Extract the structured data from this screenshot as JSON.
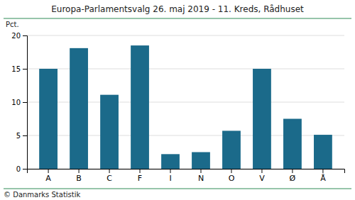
{
  "chart_data": {
    "type": "bar",
    "title": "Europa-Parlamentsvalg 26. maj 2019 - 11. Kreds, Rådhuset",
    "ylabel": "Pct.",
    "footer": "© Danmarks Statistik",
    "categories": [
      "A",
      "B",
      "C",
      "F",
      "I",
      "N",
      "O",
      "V",
      "Ø",
      "Å"
    ],
    "values": [
      15.0,
      18.1,
      11.1,
      18.5,
      2.2,
      2.5,
      5.7,
      15.0,
      7.5,
      5.1
    ],
    "color": "#1b6a8a",
    "ylim": [
      0,
      20
    ],
    "yticks": [
      0,
      5,
      10,
      15,
      20
    ],
    "grid": true
  }
}
